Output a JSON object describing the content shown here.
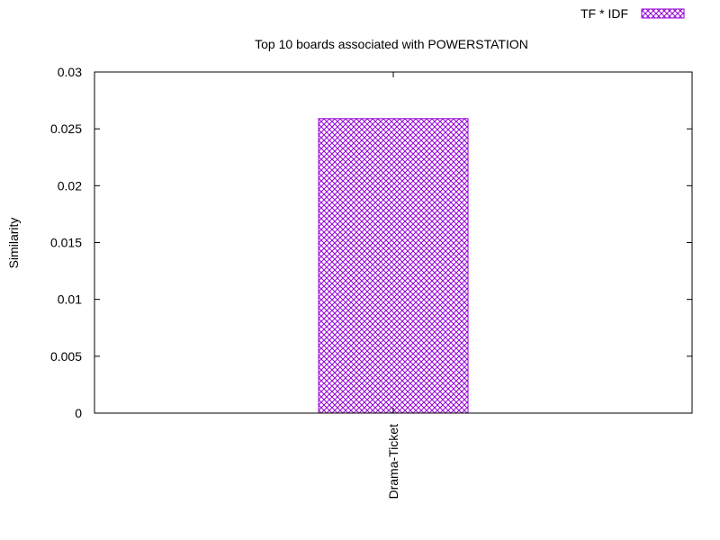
{
  "chart_data": {
    "type": "bar",
    "title": "Top 10 boards associated with POWERSTATION",
    "xlabel": "",
    "ylabel": "Similarity",
    "ylim": [
      0,
      0.03
    ],
    "yticks": [
      "0",
      "0.005",
      "0.01",
      "0.015",
      "0.02",
      "0.025",
      "0.03"
    ],
    "categories": [
      "Drama-Ticket"
    ],
    "series": [
      {
        "name": "TF * IDF",
        "values": [
          0.0259
        ]
      }
    ],
    "colors": {
      "bar": "#9400d3",
      "axis": "#000000"
    },
    "bar_fill": "crosshatch",
    "legend_position": "top-right",
    "grid": false
  }
}
